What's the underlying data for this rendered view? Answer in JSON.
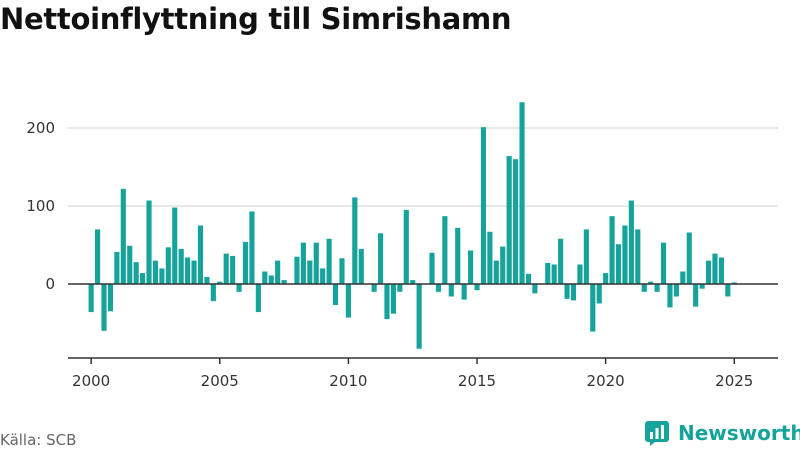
{
  "title": "Nettoinflyttning till Simrishamn",
  "source": "Källa: SCB",
  "brand": {
    "name": "Newsworthy",
    "icon": "newsworthy-logo-icon"
  },
  "colors": {
    "bar": "#16a39b",
    "axis": "#333333",
    "grid": "#d9d9d9",
    "tick_text": "#333333"
  },
  "chart_data": {
    "type": "bar",
    "title": "Nettoinflyttning till Simrishamn",
    "xlabel": "",
    "ylabel": "",
    "ylim": [
      -85,
      240
    ],
    "xlim": [
      1999.1,
      2026.7
    ],
    "grid": true,
    "legend": "none",
    "yticks": [
      0,
      100,
      200
    ],
    "xticks": [
      "2000",
      "2005",
      "2010",
      "2015",
      "2020",
      "2025"
    ],
    "x_start": 2000,
    "x_step": 0.25,
    "values": [
      -36,
      70,
      -60,
      -35,
      41,
      122,
      49,
      28,
      14,
      107,
      30,
      20,
      47,
      98,
      45,
      34,
      30,
      75,
      9,
      -22,
      3,
      39,
      36,
      -10,
      54,
      93,
      -36,
      16,
      11,
      30,
      5,
      0,
      35,
      53,
      30,
      53,
      20,
      58,
      -27,
      33,
      -43,
      111,
      45,
      0,
      -10,
      65,
      -45,
      -38,
      -10,
      95,
      5,
      -83,
      0,
      40,
      -10,
      87,
      -16,
      72,
      -20,
      43,
      -8,
      201,
      67,
      30,
      48,
      164,
      160,
      233,
      13,
      -12,
      0,
      27,
      25,
      58,
      -19,
      -21,
      25,
      70,
      -61,
      -25,
      14,
      87,
      51,
      75,
      107,
      70,
      -10,
      3,
      -10,
      53,
      -30,
      -16,
      16,
      66,
      -29,
      -6,
      30,
      39,
      34,
      -16,
      2
    ]
  }
}
